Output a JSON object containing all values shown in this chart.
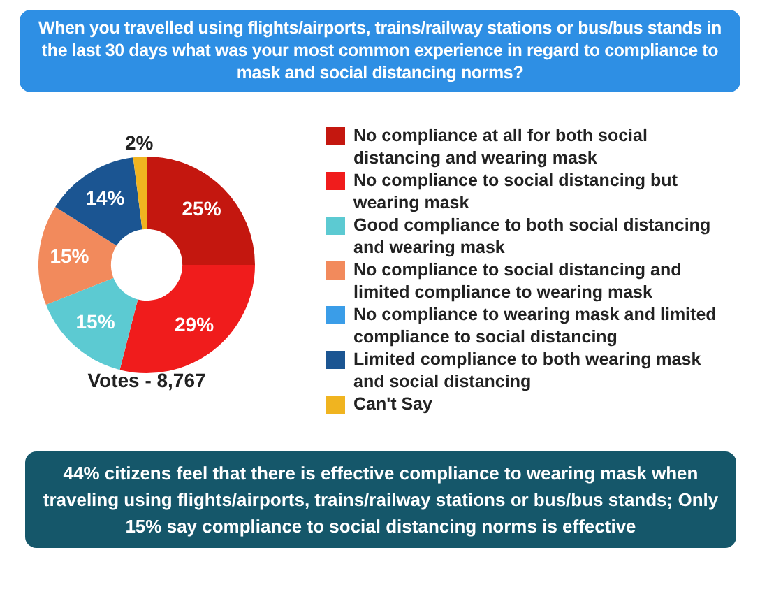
{
  "chart_data": {
    "type": "donut",
    "title": "When you travelled using flights/airports, trains/railway stations or bus/bus stands in the last 30 days what was your most common experience in regard to compliance to mask and social distancing norms?",
    "categories": [
      "No compliance at all for both social distancing and wearing mask",
      "No compliance to social distancing but wearing mask",
      "Good compliance to both social distancing and wearing mask",
      "No compliance to social distancing and limited compliance to wearing mask",
      "No compliance to wearing mask and limited compliance to social distancing",
      "Limited compliance to both wearing mask and social distancing",
      "Can't Say"
    ],
    "values": [
      25,
      29,
      15,
      15,
      0,
      14,
      2
    ],
    "colors": [
      "#c4170f",
      "#f01c1c",
      "#5ccad2",
      "#f28a5c",
      "#3a9de8",
      "#1b5592",
      "#f0b420"
    ],
    "value_labels": [
      "25%",
      "29%",
      "15%",
      "15%",
      null,
      "14%",
      "2%"
    ],
    "legend": "right",
    "annotations": [
      "Votes - 8,767",
      "44% citizens feel that there is effective compliance to wearing mask when traveling using flights/airports, trains/railway stations or bus/bus stands; Only 15% say compliance to social distancing norms is effective"
    ]
  }
}
